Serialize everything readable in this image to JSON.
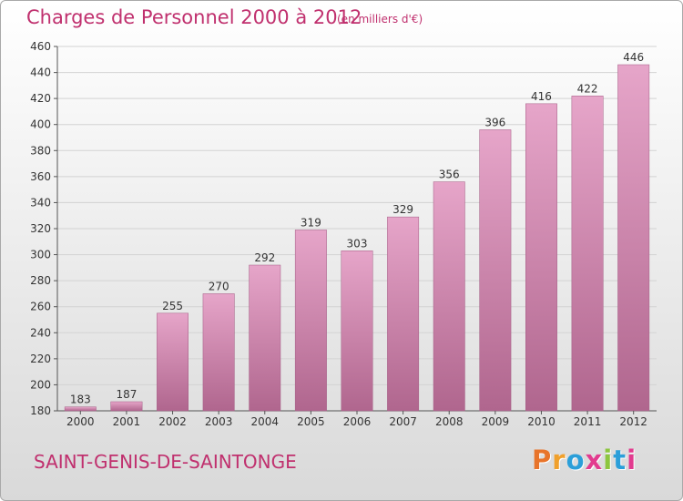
{
  "header": {
    "title": "Charges de Personnel 2000 à 2012",
    "subtitle": "(en milliers d'€)"
  },
  "footer": {
    "town": "SAINT-GENIS-DE-SAINTONGE",
    "logo_text": "Proxiti",
    "logo_colors": [
      "#e8742a",
      "#f0a02c",
      "#2b9fd9",
      "#e23b8f",
      "#8dc63f",
      "#2b9fd9",
      "#e23b8f"
    ]
  },
  "colors": {
    "bar_top": "#e6a5c9",
    "bar_bottom": "#b0668e",
    "text_accent": "#c0306e",
    "grid": "#d3d3d3"
  },
  "chart_data": {
    "type": "bar",
    "categories": [
      "2000",
      "2001",
      "2002",
      "2003",
      "2004",
      "2005",
      "2006",
      "2007",
      "2008",
      "2009",
      "2010",
      "2011",
      "2012"
    ],
    "values": [
      183,
      187,
      255,
      270,
      292,
      319,
      303,
      329,
      356,
      396,
      416,
      422,
      446
    ],
    "data_labels": [
      "183",
      "187",
      "255",
      "270",
      "292",
      "319",
      "303",
      "329",
      "356",
      "396",
      "416",
      "422",
      "446"
    ],
    "title": "Charges de Personnel 2000 à 2012",
    "subtitle": "(en milliers d'€)",
    "xlabel": "",
    "ylabel": "",
    "ylim": [
      180,
      460
    ],
    "yticks": [
      180,
      200,
      220,
      240,
      260,
      280,
      300,
      320,
      340,
      360,
      380,
      400,
      420,
      440,
      460
    ],
    "grid": true,
    "legend": "none"
  }
}
